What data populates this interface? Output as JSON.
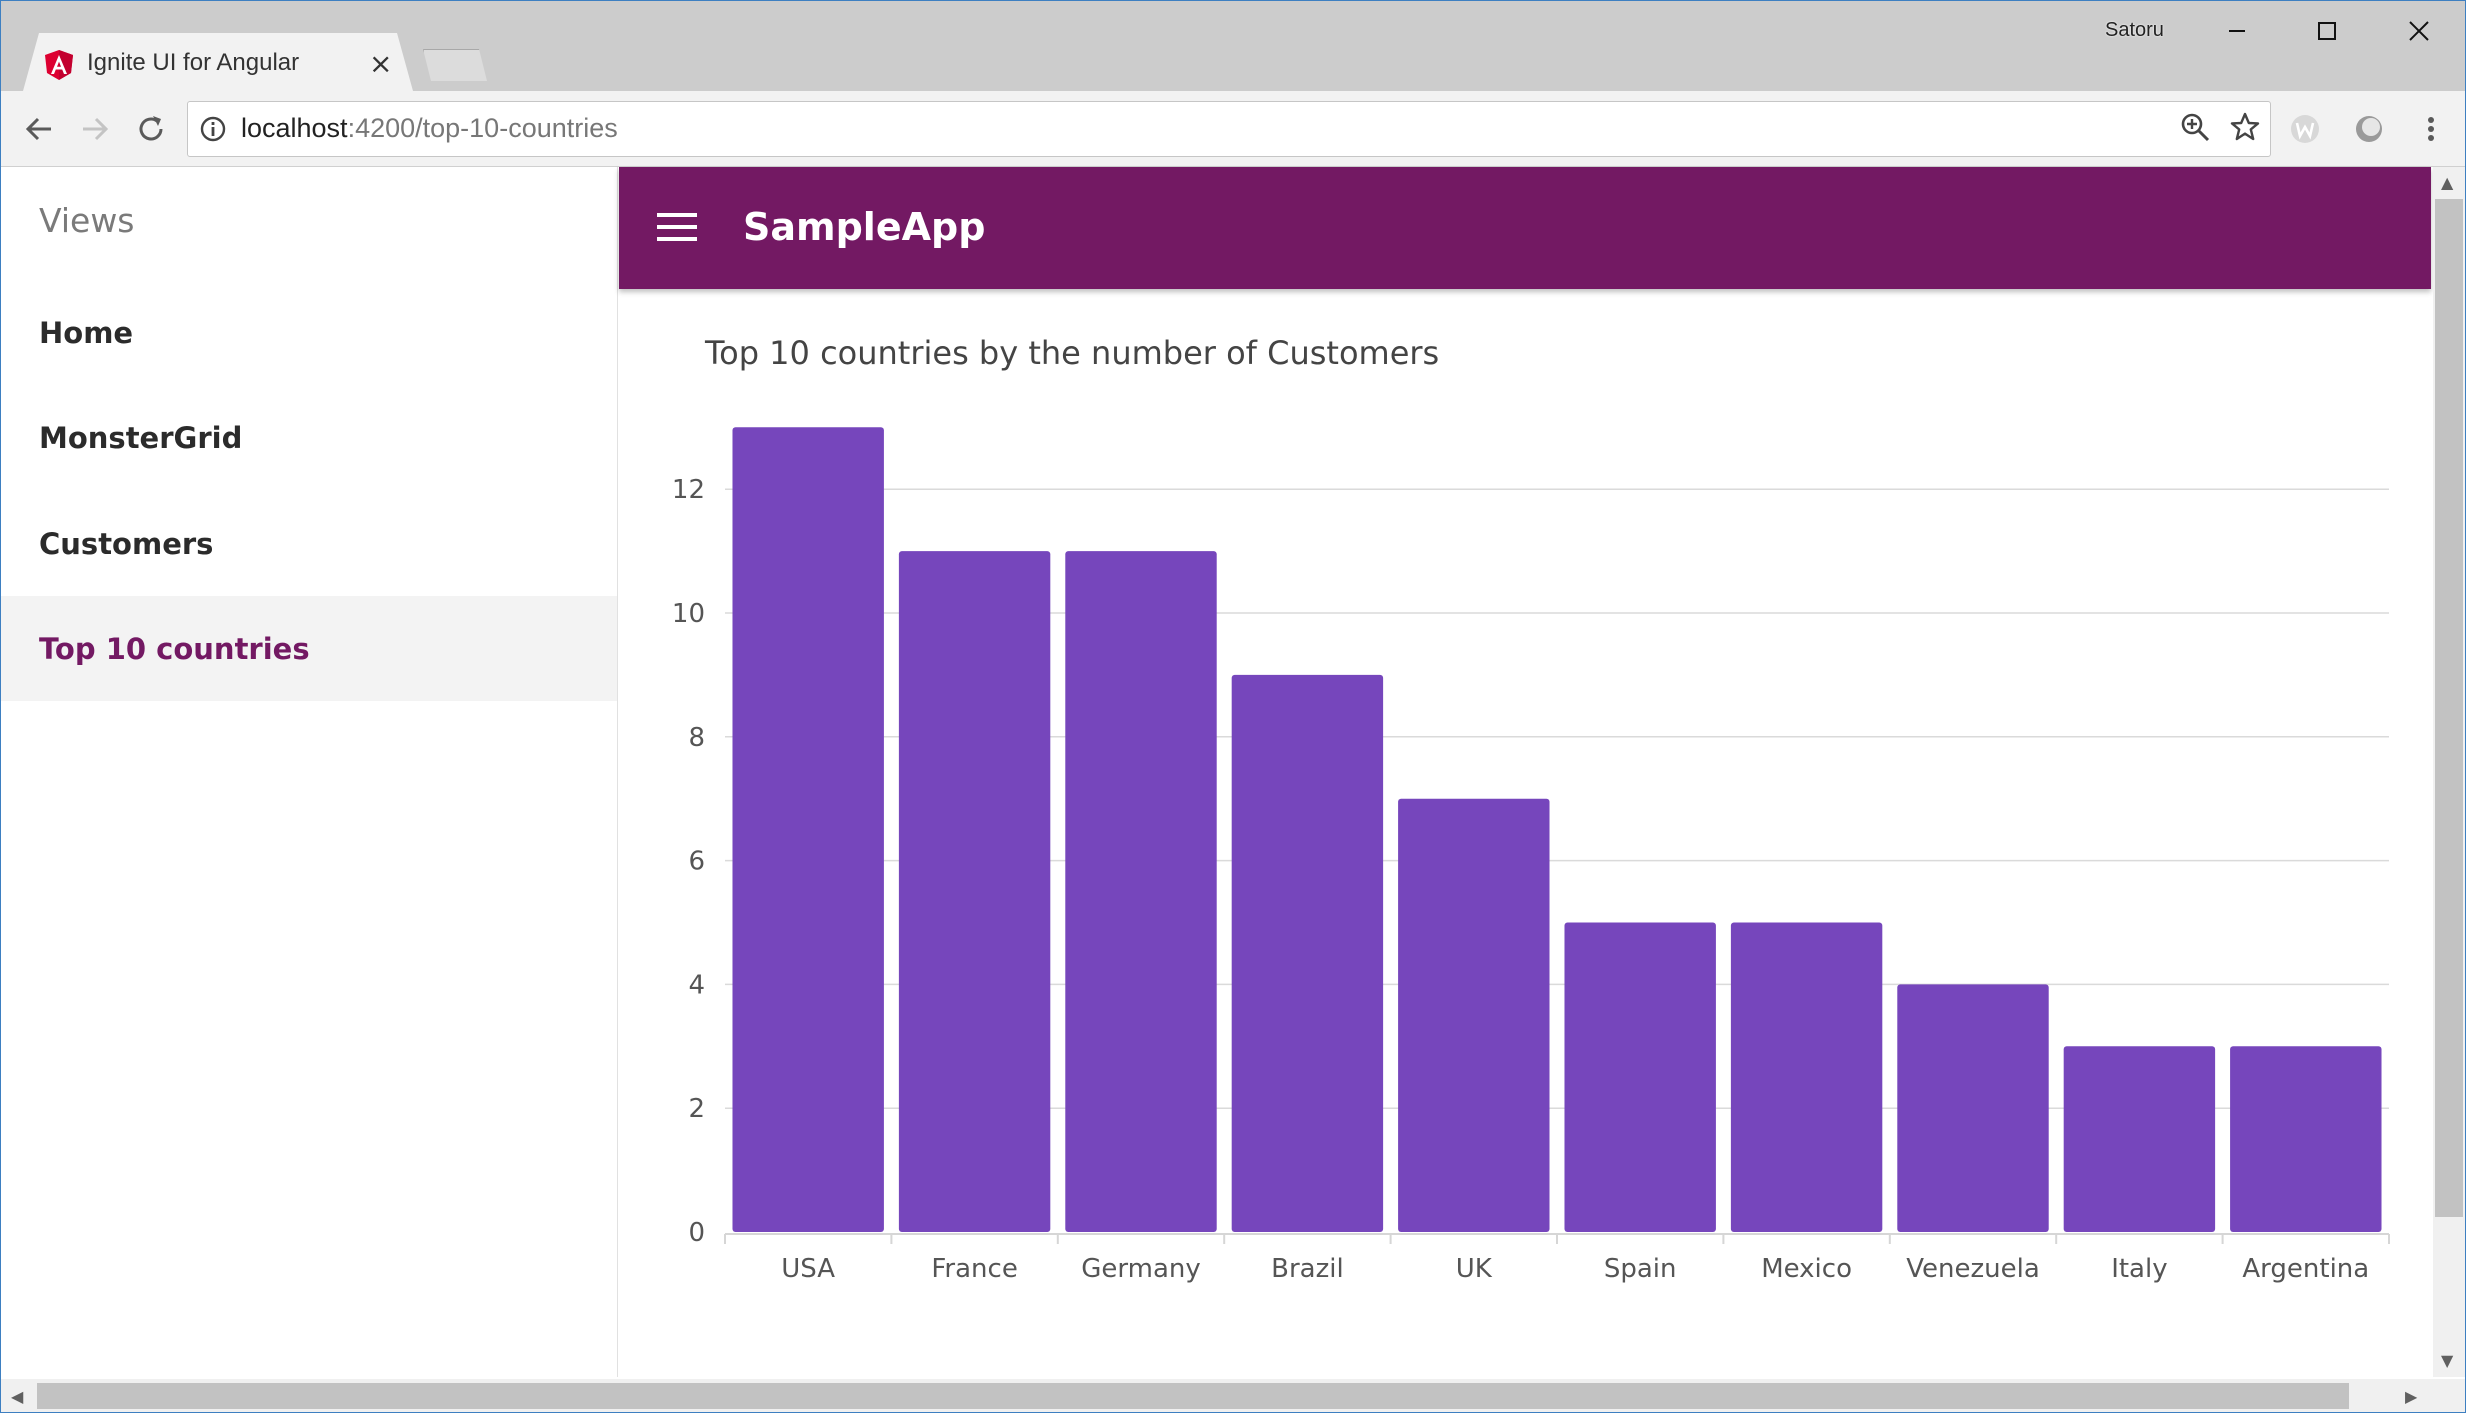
{
  "browser": {
    "tab_title": "Ignite UI for Angular",
    "tab_close": "×",
    "profile_name": "Satoru",
    "url_host": "localhost",
    "url_path": ":4200/top-10-countries"
  },
  "sidebar": {
    "title": "Views",
    "items": [
      {
        "label": "Home"
      },
      {
        "label": "MonsterGrid"
      },
      {
        "label": "Customers"
      },
      {
        "label": "Top 10 countries"
      }
    ],
    "active_index": 3
  },
  "app": {
    "title": "SampleApp",
    "accent_color": "#731963"
  },
  "chart_data": {
    "type": "bar",
    "title": "Top 10 countries by the number of Customers",
    "categories": [
      "USA",
      "France",
      "Germany",
      "Brazil",
      "UK",
      "Spain",
      "Mexico",
      "Venezuela",
      "Italy",
      "Argentina"
    ],
    "values": [
      13,
      11,
      11,
      9,
      7,
      5,
      5,
      4,
      3,
      3
    ],
    "ylim": [
      0,
      13
    ],
    "yticks": [
      0,
      2,
      4,
      6,
      8,
      10,
      12
    ],
    "xlabel": "",
    "ylabel": "",
    "grid": true,
    "bar_color": "#7646bc"
  }
}
